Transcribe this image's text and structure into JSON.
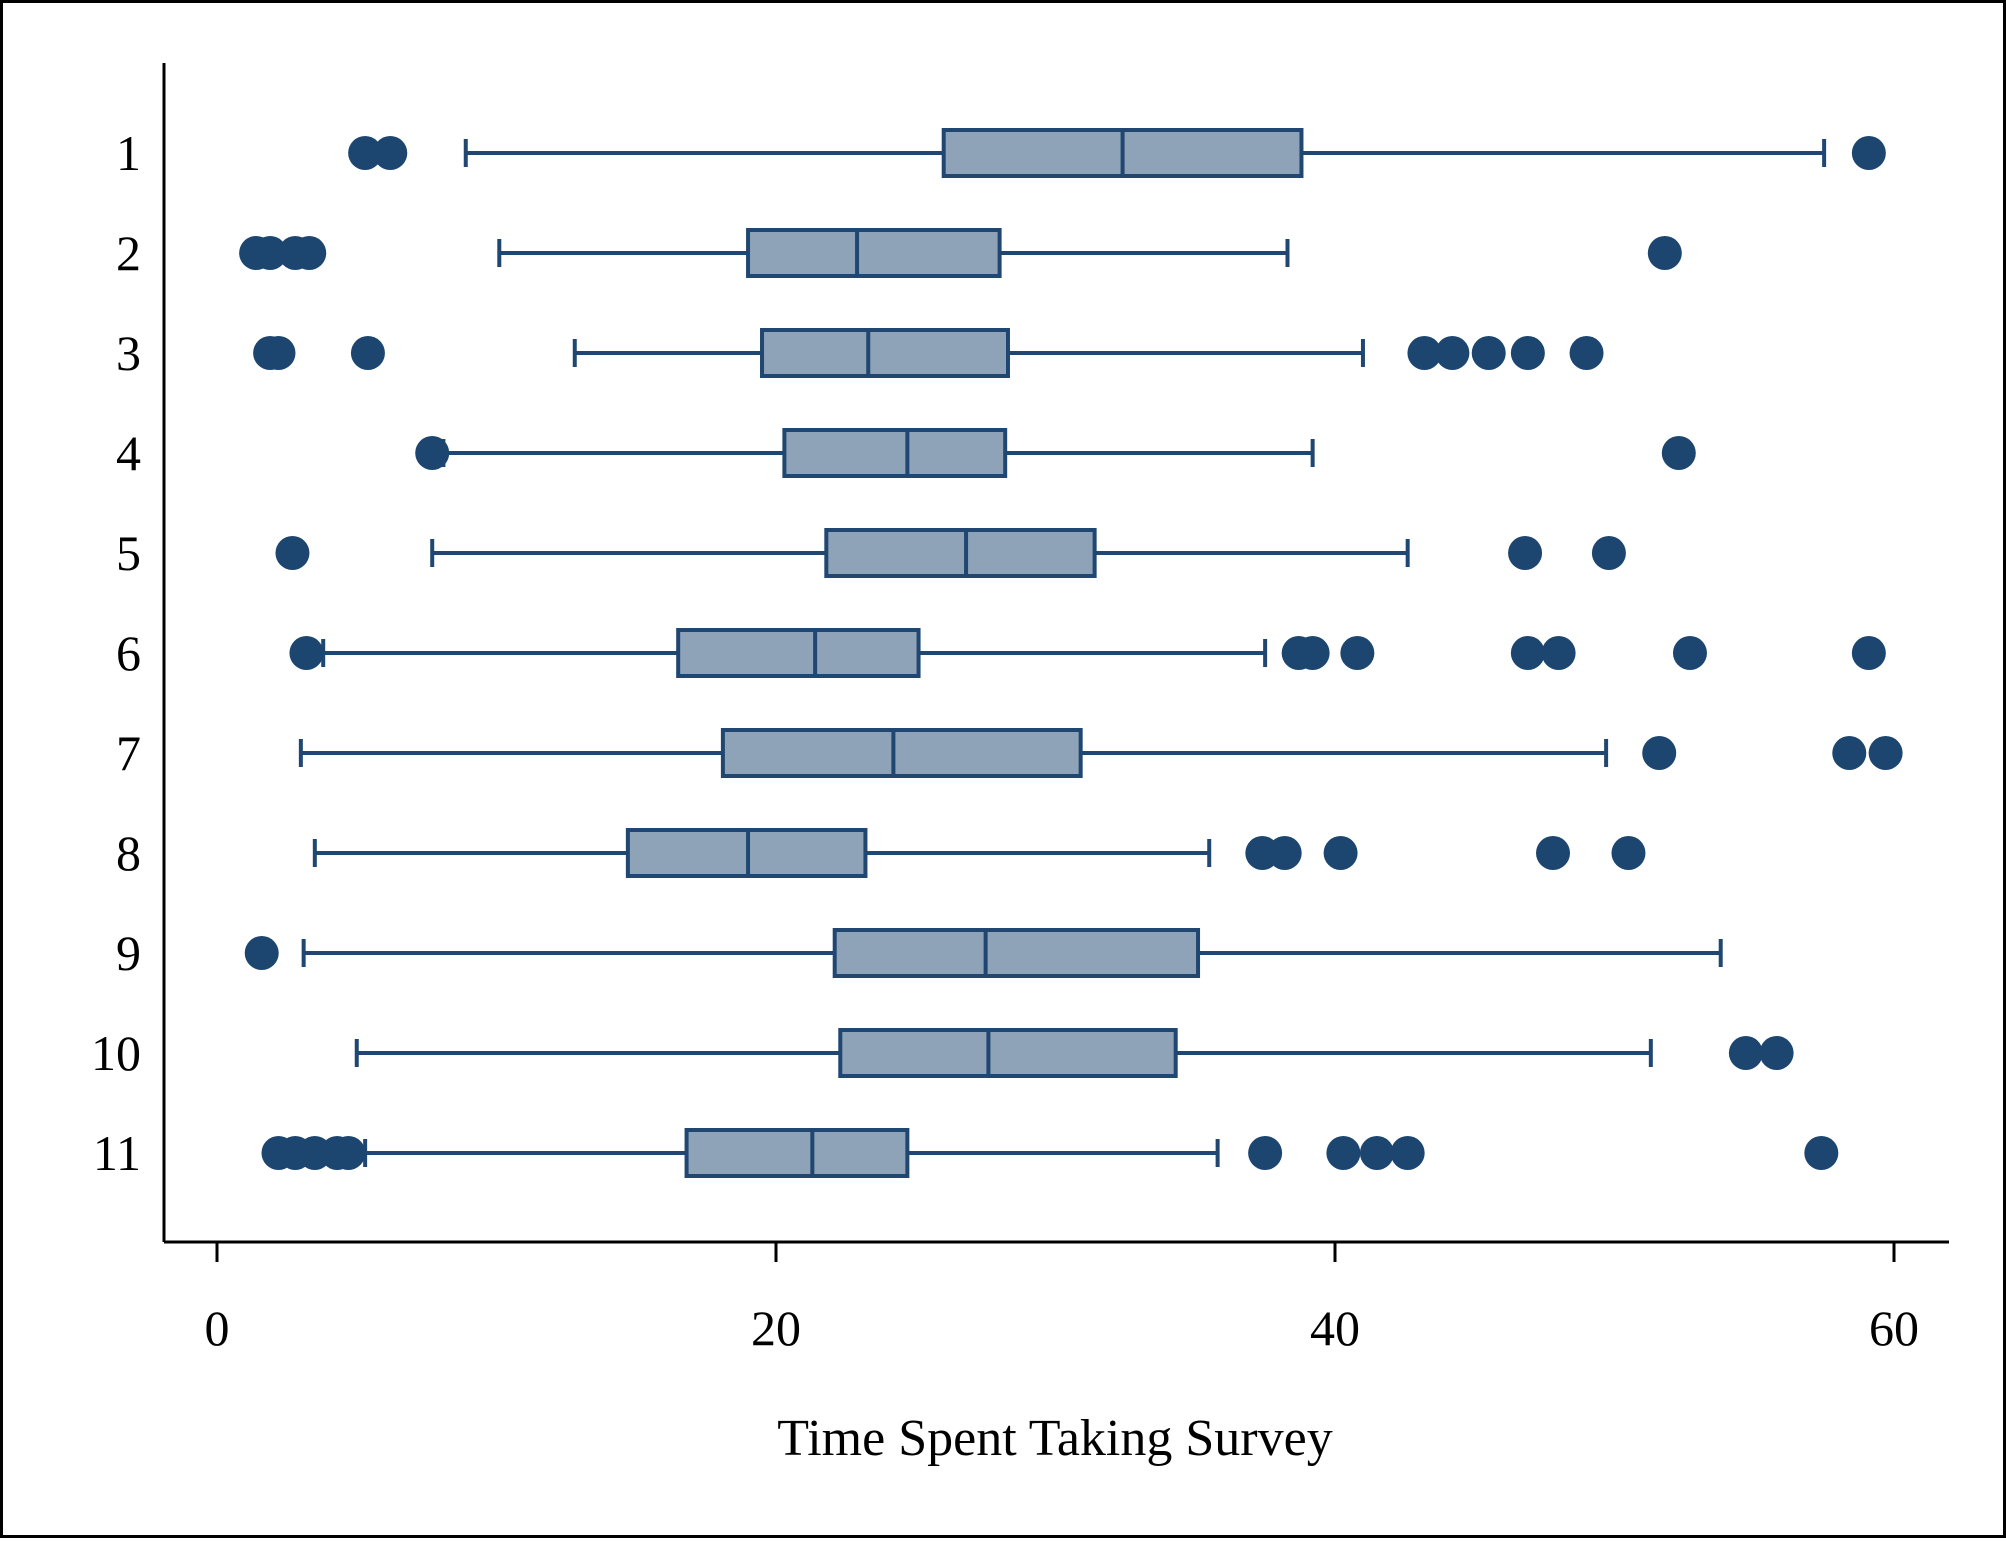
{
  "chart_data": {
    "type": "boxplot",
    "orientation": "horizontal",
    "title": "",
    "xlabel": "Time Spent Taking Survey",
    "ylabel": "",
    "xlim": [
      -1,
      62
    ],
    "xticks": [
      0,
      20,
      40,
      60
    ],
    "grid": false,
    "colors": {
      "box_fill": "#8ea3b8",
      "stroke": "#1f4771",
      "outlier": "#1c4670",
      "axis": "#000000"
    },
    "groups": [
      {
        "label": "1",
        "whisker_low": 8.9,
        "q1": 26.0,
        "median": 32.4,
        "q3": 38.8,
        "whisker_high": 57.5,
        "outliers": [
          5.3,
          6.2,
          59.1
        ]
      },
      {
        "label": "2",
        "whisker_low": 10.1,
        "q1": 19.0,
        "median": 22.9,
        "q3": 28.0,
        "whisker_high": 38.3,
        "outliers": [
          1.4,
          1.9,
          2.8,
          3.3,
          51.8
        ]
      },
      {
        "label": "3",
        "whisker_low": 12.8,
        "q1": 19.5,
        "median": 23.3,
        "q3": 28.3,
        "whisker_high": 41.0,
        "outliers": [
          1.9,
          2.2,
          5.4,
          43.2,
          44.2,
          45.5,
          46.9,
          49.0
        ]
      },
      {
        "label": "4",
        "whisker_low": 8.1,
        "q1": 20.3,
        "median": 24.7,
        "q3": 28.2,
        "whisker_high": 39.2,
        "outliers": [
          7.7,
          52.3
        ]
      },
      {
        "label": "5",
        "whisker_low": 7.7,
        "q1": 21.8,
        "median": 26.8,
        "q3": 31.4,
        "whisker_high": 42.6,
        "outliers": [
          2.7,
          46.8,
          49.8
        ]
      },
      {
        "label": "6",
        "whisker_low": 3.8,
        "q1": 16.5,
        "median": 21.4,
        "q3": 25.1,
        "whisker_high": 37.5,
        "outliers": [
          3.2,
          38.7,
          39.2,
          40.8,
          46.9,
          48.0,
          52.7,
          59.1
        ]
      },
      {
        "label": "7",
        "whisker_low": 3.0,
        "q1": 18.1,
        "median": 24.2,
        "q3": 30.9,
        "whisker_high": 49.7,
        "outliers": [
          51.6,
          58.4,
          59.7
        ]
      },
      {
        "label": "8",
        "whisker_low": 3.5,
        "q1": 14.7,
        "median": 19.0,
        "q3": 23.2,
        "whisker_high": 35.5,
        "outliers": [
          37.4,
          38.2,
          40.2,
          47.8,
          50.5
        ]
      },
      {
        "label": "9",
        "whisker_low": 3.1,
        "q1": 22.1,
        "median": 27.5,
        "q3": 35.1,
        "whisker_high": 53.8,
        "outliers": [
          1.6
        ]
      },
      {
        "label": "10",
        "whisker_low": 5.0,
        "q1": 22.3,
        "median": 27.6,
        "q3": 34.3,
        "whisker_high": 51.3,
        "outliers": [
          54.7,
          55.8
        ]
      },
      {
        "label": "11",
        "whisker_low": 5.3,
        "q1": 16.8,
        "median": 21.3,
        "q3": 24.7,
        "whisker_high": 35.8,
        "outliers": [
          2.2,
          2.8,
          3.5,
          4.3,
          4.7,
          37.5,
          40.3,
          41.5,
          42.6,
          57.4
        ]
      }
    ]
  }
}
